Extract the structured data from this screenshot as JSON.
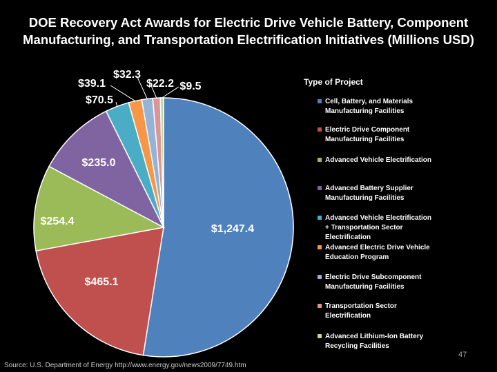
{
  "slide": {
    "title_line1": "DOE Recovery Act Awards for Electric Drive Vehicle Battery, Component",
    "title_line2": "Manufacturing, and Transportation Electrification Initiatives (Millions USD)",
    "source": "Source:  U.S. Department of Energy http://www.energy.gov/news2009/7749.htm",
    "page_number": "47",
    "background": "#000000"
  },
  "chart_data": {
    "type": "pie",
    "legend_title": "Type of Project",
    "legend_position": "right",
    "slices": [
      {
        "label": "$1,247.4",
        "value": 1247.4,
        "color": "#4f81bd",
        "legend": [
          "Cell, Battery, and Materials",
          "Manufacturing Facilities"
        ]
      },
      {
        "label": "$465.1",
        "value": 465.1,
        "color": "#c0504d",
        "legend": [
          "Electric Drive Component",
          "Manufacturing Facilities"
        ]
      },
      {
        "label": "$254.4",
        "value": 254.4,
        "color": "#9bbb59",
        "legend": [
          "Advanced Vehicle Electrification"
        ]
      },
      {
        "label": "$235.0",
        "value": 235.0,
        "color": "#8064a2",
        "legend": [
          "Advanced Battery Supplier",
          "Manufacturing Facilities"
        ]
      },
      {
        "label": "$70.5",
        "value": 70.5,
        "color": "#4bacc6",
        "legend": [
          "Advanced Vehicle Electrification",
          "+ Transportation Sector",
          "Electrification"
        ]
      },
      {
        "label": "$39.1",
        "value": 39.1,
        "color": "#f79646",
        "legend": [
          "Advanced Electric Drive Vehicle",
          "Education Program"
        ]
      },
      {
        "label": "$32.3",
        "value": 32.3,
        "color": "#95b3d7",
        "legend": [
          "Electric Drive Subcomponent",
          "Manufacturing Facilities"
        ]
      },
      {
        "label": "$22.2",
        "value": 22.2,
        "color": "#d99694",
        "legend": [
          "Transportation Sector",
          "Electrification"
        ]
      },
      {
        "label": "$9.5",
        "value": 9.5,
        "color": "#c3d69b",
        "legend": [
          "Advanced Lithium-Ion Battery",
          "Recycling Facilities"
        ]
      }
    ]
  }
}
